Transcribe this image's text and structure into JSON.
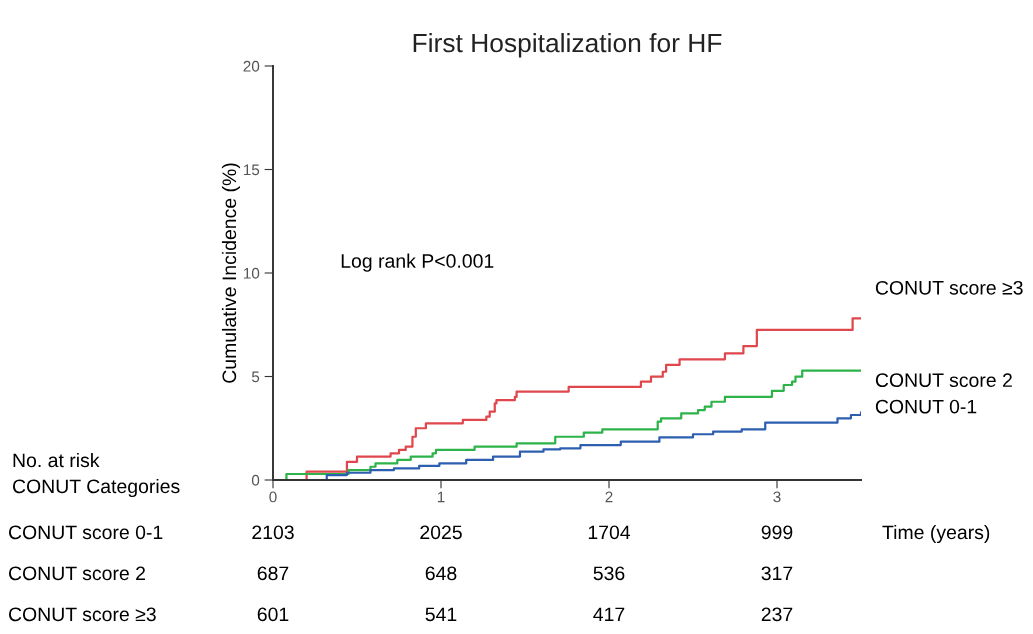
{
  "chart_data": {
    "type": "step",
    "title": "First Hospitalization for HF",
    "xlabel": "Time (years)",
    "ylabel": "Cumulative Incidence (%)",
    "xlim": [
      0,
      3.5
    ],
    "xticks": [
      0,
      1,
      2,
      3
    ],
    "ylim": [
      0,
      20
    ],
    "yticks": [
      0,
      5,
      10,
      15,
      20
    ],
    "grid": false,
    "legend": false,
    "series": [
      {
        "name": "CONUT score ≥3",
        "color": "#e0474c",
        "x": [
          0.12,
          0.2,
          0.44,
          0.5,
          0.7,
          0.75,
          0.79,
          0.83,
          0.85,
          0.91,
          1.13,
          1.27,
          1.29,
          1.32,
          1.33,
          1.44,
          1.45,
          1.76,
          2.19,
          2.25,
          2.32,
          2.34,
          2.42,
          2.69,
          2.8,
          2.88,
          3.45,
          3.5
        ],
        "values": [
          0,
          0.4,
          0.88,
          1.13,
          1.29,
          1.45,
          1.61,
          2.09,
          2.5,
          2.74,
          2.9,
          3.06,
          3.3,
          3.7,
          3.86,
          4.02,
          4.27,
          4.5,
          4.75,
          4.99,
          5.23,
          5.56,
          5.83,
          6.12,
          6.47,
          7.25,
          7.81,
          7.81
        ]
      },
      {
        "name": "CONUT score 2",
        "color": "#2db34a",
        "x": [
          0.07,
          0.08,
          0.45,
          0.58,
          0.61,
          0.74,
          0.82,
          0.95,
          0.97,
          1.2,
          1.45,
          1.68,
          1.85,
          1.96,
          2.29,
          2.31,
          2.43,
          2.53,
          2.57,
          2.61,
          2.69,
          2.97,
          3.04,
          3.09,
          3.11,
          3.15,
          3.5
        ],
        "values": [
          0,
          0.29,
          0.48,
          0.64,
          0.8,
          0.97,
          1.13,
          1.29,
          1.45,
          1.61,
          1.77,
          2.09,
          2.29,
          2.45,
          2.82,
          2.98,
          3.22,
          3.38,
          3.54,
          3.78,
          4.02,
          4.31,
          4.59,
          4.75,
          4.99,
          5.28,
          5.28
        ]
      },
      {
        "name": "CONUT 0-1",
        "color": "#2d5fb0",
        "x": [
          0.12,
          0.32,
          0.44,
          0.58,
          0.72,
          0.87,
          0.99,
          1.15,
          1.31,
          1.47,
          1.61,
          1.71,
          1.83,
          2.07,
          2.3,
          2.5,
          2.62,
          2.79,
          2.93,
          3.36,
          3.44,
          3.5
        ],
        "values": [
          0,
          0.24,
          0.35,
          0.48,
          0.56,
          0.68,
          0.8,
          0.97,
          1.13,
          1.37,
          1.48,
          1.53,
          1.69,
          1.85,
          2.06,
          2.21,
          2.34,
          2.45,
          2.77,
          2.98,
          3.14,
          3.25
        ]
      }
    ],
    "annotations": [
      "Log rank P<0.001",
      "No. at risk",
      "CONUT Categories",
      "CONUT score 0-1",
      "2103",
      "2025",
      "1704",
      "999",
      "CONUT score 2",
      "687",
      "648",
      "536",
      "317",
      "CONUT score ≥3",
      "601",
      "541",
      "417",
      "237"
    ]
  }
}
